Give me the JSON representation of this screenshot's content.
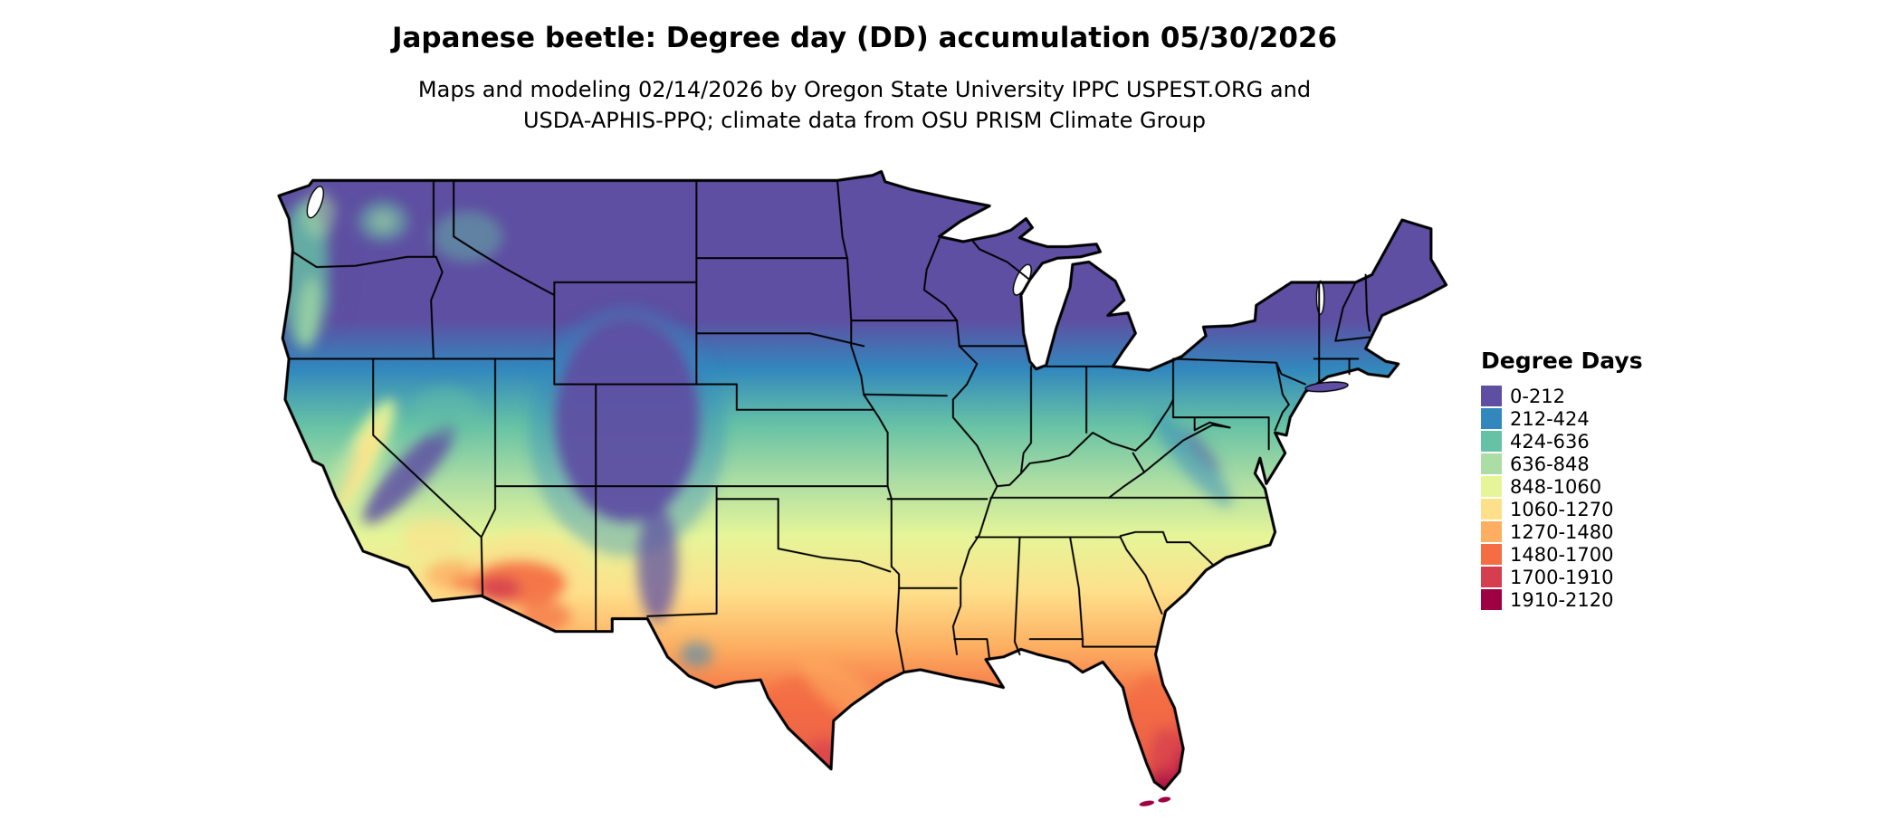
{
  "page": {
    "background_color": "#ffffff",
    "text_color": "#000000"
  },
  "header": {
    "title": "Japanese beetle: Degree day (DD) accumulation 05/30/2026",
    "subtitle_line1": "Maps and modeling 02/14/2026 by Oregon State University IPPC USPEST.ORG and",
    "subtitle_line2": "USDA-APHIS-PPQ; climate data from OSU PRISM Climate Group"
  },
  "legend": {
    "title": "Degree Days",
    "entries": [
      {
        "label": "0-212",
        "color": "#5e4fa2"
      },
      {
        "label": "212-424",
        "color": "#3288bd"
      },
      {
        "label": "424-636",
        "color": "#66c2a5"
      },
      {
        "label": "636-848",
        "color": "#abdda4"
      },
      {
        "label": "848-1060",
        "color": "#e6f598"
      },
      {
        "label": "1060-1270",
        "color": "#fee08b"
      },
      {
        "label": "1270-1480",
        "color": "#fdae61"
      },
      {
        "label": "1480-1700",
        "color": "#f46d43"
      },
      {
        "label": "1700-1910",
        "color": "#d53e4f"
      },
      {
        "label": "1910-2120",
        "color": "#9e0142"
      }
    ]
  },
  "chart_data": {
    "type": "choropleth_map",
    "region": "Contiguous United States with state boundaries",
    "variable": "Japanese beetle degree day (DD) accumulation",
    "map_date": "05/30/2026",
    "model_run_date": "02/14/2026",
    "legend_title": "Degree Days",
    "bins": [
      "0-212",
      "212-424",
      "424-636",
      "636-848",
      "848-1060",
      "1060-1270",
      "1270-1480",
      "1480-1700",
      "1700-1910",
      "1910-2120"
    ],
    "bin_colors": [
      "#5e4fa2",
      "#3288bd",
      "#66c2a5",
      "#abdda4",
      "#e6f598",
      "#fee08b",
      "#fdae61",
      "#f46d43",
      "#d53e4f",
      "#9e0142"
    ],
    "pattern": "Low accumulation (purple) across the northern states and high-elevation Rockies; values increase southward through blue, green and yellow bands; highest accumulation (orange to dark red) in southern Arizona, southern Texas and peninsular Florida"
  }
}
